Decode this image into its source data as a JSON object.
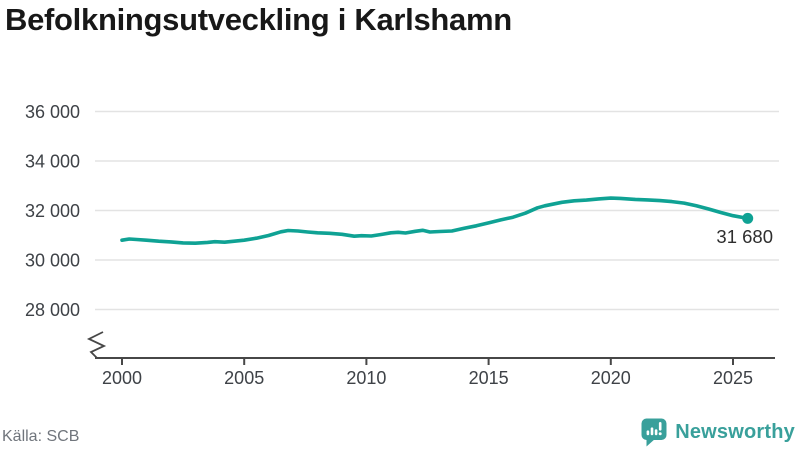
{
  "header": {
    "title": "Befolkningsutveckling i Karlshamn"
  },
  "footer": {
    "source": "Källa: SCB",
    "brand": "Newsworthy"
  },
  "colors": {
    "line": "#0fa294",
    "brand_teal": "#39a09b",
    "grid": "#e3e3e3",
    "axis": "#474747",
    "tick_text": "#3e4247",
    "annotation": "#2e2e2e",
    "source_text": "#70757c"
  },
  "icons": {
    "brand_icon": "newsworthy-bar-chart-bubble"
  },
  "chart_data": {
    "type": "line",
    "title": "Befolkningsutveckling i Karlshamn",
    "xlabel": "",
    "ylabel": "",
    "grid": "horizontal",
    "legend": "none",
    "axis_break": true,
    "xlim": [
      2000,
      2025.6
    ],
    "ylim_visible": [
      28000,
      36000
    ],
    "x_ticks": [
      2000,
      2005,
      2010,
      2015,
      2020,
      2025
    ],
    "y_ticks": [
      {
        "value": 36000,
        "label": "36 000"
      },
      {
        "value": 34000,
        "label": "34 000"
      },
      {
        "value": 32000,
        "label": "32 000"
      },
      {
        "value": 30000,
        "label": "30 000"
      },
      {
        "value": 28000,
        "label": "28 000"
      }
    ],
    "end_point": {
      "x": 2025.6,
      "value": 31680,
      "label": "31 680"
    },
    "series": [
      {
        "name": "Befolkning",
        "points": [
          [
            2000.0,
            30800
          ],
          [
            2000.3,
            30850
          ],
          [
            2000.6,
            30830
          ],
          [
            2001.0,
            30800
          ],
          [
            2001.5,
            30760
          ],
          [
            2002.0,
            30730
          ],
          [
            2002.5,
            30690
          ],
          [
            2003.0,
            30680
          ],
          [
            2003.5,
            30710
          ],
          [
            2003.8,
            30740
          ],
          [
            2004.2,
            30720
          ],
          [
            2004.6,
            30760
          ],
          [
            2005.0,
            30800
          ],
          [
            2005.5,
            30880
          ],
          [
            2006.0,
            30990
          ],
          [
            2006.5,
            31140
          ],
          [
            2006.8,
            31190
          ],
          [
            2007.2,
            31170
          ],
          [
            2007.6,
            31130
          ],
          [
            2008.0,
            31100
          ],
          [
            2008.5,
            31080
          ],
          [
            2009.0,
            31040
          ],
          [
            2009.5,
            30960
          ],
          [
            2009.8,
            30980
          ],
          [
            2010.2,
            30970
          ],
          [
            2010.6,
            31030
          ],
          [
            2011.0,
            31100
          ],
          [
            2011.3,
            31120
          ],
          [
            2011.6,
            31090
          ],
          [
            2012.0,
            31160
          ],
          [
            2012.3,
            31200
          ],
          [
            2012.6,
            31130
          ],
          [
            2013.0,
            31150
          ],
          [
            2013.5,
            31170
          ],
          [
            2014.0,
            31280
          ],
          [
            2014.5,
            31380
          ],
          [
            2015.0,
            31500
          ],
          [
            2015.5,
            31620
          ],
          [
            2016.0,
            31730
          ],
          [
            2016.5,
            31890
          ],
          [
            2017.0,
            32110
          ],
          [
            2017.3,
            32190
          ],
          [
            2017.6,
            32250
          ],
          [
            2018.0,
            32330
          ],
          [
            2018.5,
            32390
          ],
          [
            2019.0,
            32420
          ],
          [
            2019.5,
            32470
          ],
          [
            2020.0,
            32500
          ],
          [
            2020.4,
            32490
          ],
          [
            2021.0,
            32450
          ],
          [
            2021.5,
            32430
          ],
          [
            2022.0,
            32400
          ],
          [
            2022.5,
            32360
          ],
          [
            2023.0,
            32300
          ],
          [
            2023.5,
            32190
          ],
          [
            2024.0,
            32060
          ],
          [
            2024.5,
            31920
          ],
          [
            2025.0,
            31790
          ],
          [
            2025.6,
            31680
          ]
        ]
      }
    ]
  }
}
